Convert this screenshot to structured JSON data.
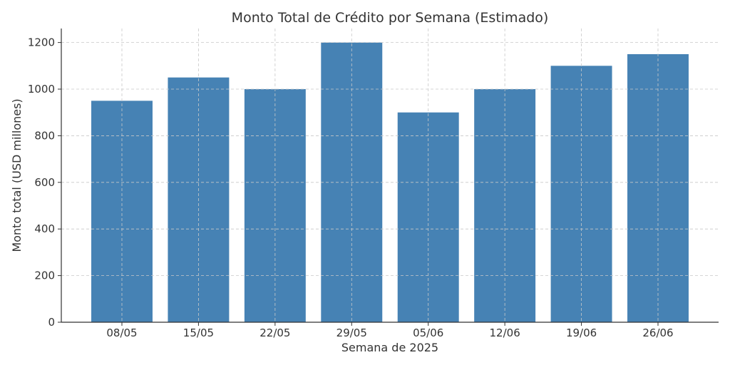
{
  "chart_data": {
    "type": "bar",
    "title": "Monto Total de Crédito por Semana (Estimado)",
    "xlabel": "Semana de 2025",
    "ylabel": "Monto total (USD millones)",
    "categories": [
      "08/05",
      "15/05",
      "22/05",
      "29/05",
      "05/06",
      "12/06",
      "19/06",
      "26/06"
    ],
    "values": [
      950,
      1050,
      1000,
      1200,
      900,
      1000,
      1100,
      1150
    ],
    "ylim": [
      0,
      1260
    ],
    "yticks": [
      0,
      200,
      400,
      600,
      800,
      1000,
      1200
    ],
    "grid": true,
    "bar_color": "#4682b4"
  }
}
